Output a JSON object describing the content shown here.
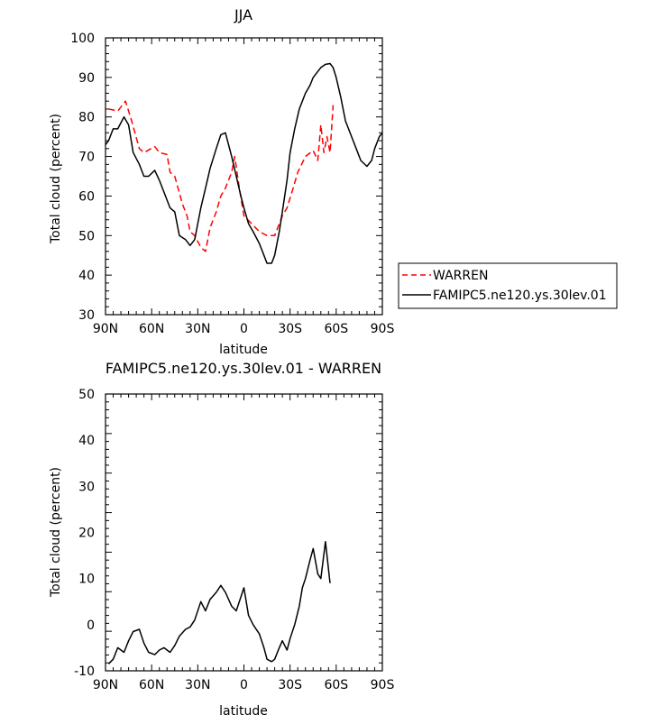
{
  "chart_data": [
    {
      "type": "line",
      "title": "JJA",
      "xlabel": "latitude",
      "ylabel": "Total cloud (percent)",
      "x_tick_labels": [
        "90N",
        "60N",
        "30N",
        "0",
        "30S",
        "60S",
        "90S"
      ],
      "x_ticks": [
        90,
        60,
        30,
        0,
        -30,
        -60,
        -90
      ],
      "xlim": [
        90,
        -90
      ],
      "ylim": [
        30,
        100
      ],
      "y_ticks": [
        30,
        40,
        50,
        60,
        70,
        80,
        90,
        100
      ],
      "legend": "right",
      "series": [
        {
          "name": "WARREN",
          "color": "#ff0000",
          "dash": "dashed",
          "x": [
            88,
            82,
            77,
            73,
            68,
            65,
            58,
            55,
            50,
            48,
            45,
            40,
            37,
            35,
            32,
            28,
            25,
            22,
            18,
            15,
            12,
            10,
            8,
            6,
            3,
            0,
            -5,
            -10,
            -15,
            -20,
            -25,
            -28,
            -32,
            -35,
            -40,
            -45,
            -48,
            -50,
            -52,
            -54,
            -56,
            -58
          ],
          "y": [
            82,
            81.5,
            84,
            79,
            72,
            71,
            72.5,
            71,
            70.5,
            66,
            65,
            58,
            55,
            51,
            50,
            47,
            46,
            52,
            56,
            60,
            62,
            64,
            66,
            70,
            62,
            55,
            53,
            51,
            50,
            50,
            55,
            57,
            62,
            66,
            70,
            71.5,
            69,
            78,
            71,
            75,
            71,
            83
          ]
        },
        {
          "name": "FAMIPC5.ne120.ys.30lev.01",
          "color": "#000000",
          "dash": "solid",
          "x": [
            90,
            88,
            85,
            82,
            78,
            75,
            72,
            68,
            65,
            62,
            58,
            55,
            52,
            48,
            45,
            42,
            38,
            35,
            32,
            28,
            25,
            22,
            18,
            15,
            12,
            8,
            5,
            2,
            0,
            -3,
            -6,
            -10,
            -13,
            -15,
            -18,
            -20,
            -23,
            -25,
            -28,
            -30,
            -33,
            -36,
            -38,
            -40,
            -43,
            -45,
            -48,
            -50,
            -53,
            -56,
            -58,
            -60,
            -63,
            -66,
            -68,
            -70,
            -73,
            -76,
            -80,
            -83,
            -85,
            -88,
            -90
          ],
          "y": [
            73,
            74,
            77,
            77,
            80,
            78,
            71,
            68,
            65,
            65,
            66.5,
            64,
            61,
            57,
            56,
            50,
            49,
            47.5,
            49,
            57,
            62,
            67,
            72,
            75.5,
            76,
            70,
            65,
            60,
            57,
            53,
            51,
            48,
            45,
            43,
            43,
            45,
            51,
            56,
            64,
            71,
            77,
            82,
            84,
            86,
            88,
            90,
            91.5,
            92.5,
            93.3,
            93.5,
            92.5,
            90,
            85,
            79,
            77,
            75,
            72,
            69,
            67.5,
            69,
            72,
            75,
            76
          ]
        }
      ]
    },
    {
      "type": "line",
      "title": "FAMIPC5.ne120.ys.30lev.01 - WARREN",
      "xlabel": "latitude",
      "ylabel": "Total cloud (percent)",
      "x_tick_labels": [
        "90N",
        "60N",
        "30N",
        "0",
        "30S",
        "60S",
        "90S"
      ],
      "x_ticks": [
        90,
        60,
        30,
        0,
        -30,
        -60,
        -90
      ],
      "xlim": [
        90,
        -90
      ],
      "ylim": [
        -10,
        50
      ],
      "y_ticks": [
        -10,
        0,
        10,
        20,
        30,
        40,
        50
      ],
      "series": [
        {
          "color": "#000000",
          "dash": "solid",
          "x": [
            88,
            85,
            82,
            78,
            75,
            72,
            68,
            65,
            62,
            58,
            55,
            52,
            48,
            45,
            42,
            38,
            35,
            32,
            28,
            25,
            22,
            18,
            15,
            12,
            8,
            5,
            2,
            0,
            -3,
            -6,
            -10,
            -13,
            -15,
            -18,
            -20,
            -23,
            -25,
            -28,
            -30,
            -33,
            -36,
            -38,
            -40,
            -43,
            -45,
            -48,
            -50,
            -53,
            -56
          ],
          "y": [
            -8.5,
            -7.5,
            -5,
            -6,
            -3.5,
            -1.5,
            -1,
            -4,
            -6,
            -6.5,
            -5.5,
            -5,
            -6,
            -4.5,
            -2.5,
            -1,
            -0.5,
            1,
            5,
            3,
            5.5,
            7,
            8.5,
            7,
            4,
            3,
            6,
            8,
            2,
            0,
            -2,
            -5,
            -7.5,
            -8,
            -7.5,
            -5,
            -3.5,
            -5.5,
            -3,
            0,
            4,
            8,
            10,
            14,
            16.5,
            11,
            10,
            18,
            9
          ]
        }
      ]
    }
  ]
}
